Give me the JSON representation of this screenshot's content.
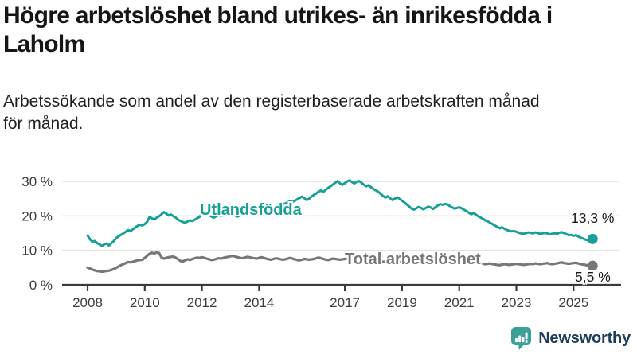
{
  "title_lines": [
    "Högre arbetslöshet bland utrikes- än inrikesfödda i",
    "Laholm"
  ],
  "subtitle_lines": [
    "Arbetssökande som andel av den registerbaserade arbetskraften månad",
    "för månad."
  ],
  "logo": {
    "name": "Newsworthy",
    "icon": "newsworthy-bars-exclamation-bubble",
    "icon_color": "#3ba197",
    "text_color": "#1e3e5c"
  },
  "colors": {
    "utlandsfodda": "#16a096",
    "total": "#76767b",
    "grid": "#e3e3e3",
    "axis": "#3a3a3a",
    "tick_text": "#3d3d3d"
  },
  "chart_data": {
    "type": "line",
    "title": "Högre arbetslöshet bland utrikes- än inrikesfödda i Laholm",
    "subtitle": "Arbetssökande som andel av den registerbaserade arbetskraften månad för månad.",
    "x_unit": "month",
    "x_start": "2008-01",
    "x_end": "2025-09",
    "grid": "horizontal",
    "legend_position": "inline-labels",
    "y_axis": {
      "min": 0,
      "max": 32,
      "ticks": [
        {
          "value": 0,
          "label": "0 %"
        },
        {
          "value": 10,
          "label": "10 %"
        },
        {
          "value": 20,
          "label": "20 %"
        },
        {
          "value": 30,
          "label": "30 %"
        }
      ]
    },
    "x_axis": {
      "tick_years": [
        2008,
        2010,
        2012,
        2014,
        2017,
        2019,
        2021,
        2023,
        2025
      ]
    },
    "series": [
      {
        "name": "Utlandsfödda",
        "color": "#16a096",
        "end_label": "13,3 %",
        "end_value": 13.3,
        "values": [
          14.3,
          13.2,
          12.5,
          12.7,
          12.1,
          11.7,
          11.3,
          11.7,
          12.0,
          11.4,
          12.1,
          12.7,
          13.5,
          14.1,
          14.5,
          14.9,
          15.4,
          15.9,
          15.6,
          16.1,
          16.6,
          17.1,
          17.4,
          17.2,
          17.6,
          18.3,
          19.7,
          19.3,
          18.9,
          19.5,
          19.9,
          20.4,
          21.1,
          20.7,
          20.1,
          20.4,
          19.9,
          19.5,
          18.9,
          18.5,
          18.2,
          18.0,
          18.4,
          18.7,
          18.5,
          18.9,
          19.3,
          19.7,
          20.7,
          21.1,
          20.7,
          20.2,
          19.8,
          19.5,
          19.9,
          20.3,
          20.0,
          20.4,
          20.7,
          20.5,
          20.9,
          20.5,
          20.1,
          19.8,
          20.2,
          20.7,
          21.1,
          21.5,
          21.2,
          20.9,
          21.3,
          21.6,
          21.8,
          21.4,
          21.2,
          21.5,
          21.9,
          22.3,
          22.6,
          22.2,
          22.5,
          22.9,
          23.3,
          23.6,
          23.9,
          24.3,
          24.0,
          24.4,
          24.8,
          25.2,
          25.6,
          25.1,
          24.6,
          25.0,
          25.6,
          26.1,
          26.5,
          27.0,
          27.4,
          27.0,
          27.6,
          28.1,
          28.6,
          29.1,
          29.6,
          30.1,
          29.4,
          29.0,
          29.5,
          30.0,
          30.3,
          29.8,
          29.4,
          29.9,
          30.1,
          29.6,
          29.0,
          28.6,
          28.9,
          28.3,
          27.8,
          27.4,
          27.0,
          26.4,
          25.8,
          25.3,
          25.7,
          25.1,
          24.6,
          25.0,
          25.4,
          24.9,
          24.4,
          23.9,
          23.3,
          22.7,
          22.1,
          21.8,
          22.2,
          22.6,
          22.3,
          21.9,
          22.3,
          22.7,
          22.4,
          22.0,
          22.5,
          23.0,
          23.4,
          23.2,
          23.5,
          23.3,
          22.9,
          22.5,
          22.1,
          22.3,
          22.5,
          22.2,
          21.8,
          21.4,
          20.9,
          20.5,
          20.8,
          20.4,
          19.9,
          19.5,
          19.1,
          18.7,
          18.4,
          18.0,
          17.6,
          17.2,
          16.8,
          16.4,
          16.7,
          16.3,
          15.9,
          15.7,
          15.5,
          15.6,
          15.4,
          15.1,
          14.9,
          14.8,
          15.0,
          15.2,
          15.1,
          14.9,
          15.2,
          15.0,
          14.8,
          14.9,
          15.1,
          14.9,
          14.7,
          14.8,
          15.0,
          14.8,
          15.1,
          15.3,
          15.0,
          14.7,
          14.4,
          14.5,
          14.2,
          14.4,
          14.0,
          13.7,
          13.4,
          13.1,
          12.9,
          13.0,
          13.3
        ]
      },
      {
        "name": "Total arbetslöshet",
        "color": "#76767b",
        "end_label": "5,5 %",
        "end_value": 5.5,
        "values": [
          5.0,
          4.7,
          4.4,
          4.2,
          4.0,
          3.9,
          3.8,
          3.9,
          4.0,
          4.1,
          4.3,
          4.6,
          4.9,
          5.3,
          5.7,
          6.0,
          6.3,
          6.6,
          6.5,
          6.7,
          6.9,
          7.1,
          7.2,
          7.3,
          7.8,
          8.4,
          9.0,
          9.3,
          9.1,
          9.4,
          9.2,
          8.0,
          7.6,
          7.8,
          8.0,
          8.1,
          8.2,
          7.9,
          7.4,
          6.9,
          6.8,
          7.1,
          7.4,
          7.2,
          7.5,
          7.7,
          7.9,
          7.8,
          8.0,
          7.8,
          7.6,
          7.4,
          7.2,
          7.3,
          7.5,
          7.7,
          7.6,
          7.8,
          8.0,
          8.1,
          8.3,
          8.4,
          8.2,
          8.0,
          7.8,
          7.7,
          7.9,
          8.1,
          8.0,
          7.8,
          7.7,
          7.6,
          7.8,
          8.0,
          7.8,
          7.6,
          7.4,
          7.3,
          7.5,
          7.7,
          7.6,
          7.4,
          7.3,
          7.4,
          7.6,
          7.8,
          7.6,
          7.4,
          7.2,
          7.1,
          7.3,
          7.5,
          7.4,
          7.3,
          7.4,
          7.5,
          7.7,
          7.9,
          7.7,
          7.5,
          7.3,
          7.2,
          7.4,
          7.6,
          7.5,
          7.4,
          7.3,
          7.4,
          7.5,
          7.6,
          7.4,
          7.2,
          7.1,
          7.0,
          7.2,
          7.4,
          7.3,
          7.2,
          7.1,
          7.0,
          7.1,
          7.2,
          7.0,
          6.8,
          6.7,
          6.6,
          6.8,
          7.0,
          6.9,
          6.8,
          6.7,
          6.6,
          6.7,
          6.8,
          6.6,
          6.5,
          6.4,
          6.3,
          6.5,
          6.7,
          6.6,
          6.5,
          6.6,
          6.7,
          6.8,
          6.9,
          7.2,
          7.5,
          7.7,
          7.6,
          7.7,
          7.6,
          7.4,
          7.2,
          7.0,
          7.1,
          7.2,
          7.1,
          6.9,
          6.7,
          6.5,
          6.4,
          6.6,
          6.5,
          6.3,
          6.2,
          6.1,
          6.0,
          6.1,
          6.2,
          6.0,
          5.9,
          5.8,
          5.7,
          5.9,
          6.0,
          5.9,
          5.8,
          5.9,
          6.0,
          6.1,
          6.0,
          5.9,
          5.8,
          5.9,
          6.0,
          6.1,
          6.0,
          6.2,
          6.1,
          6.0,
          6.1,
          6.2,
          6.3,
          6.1,
          6.0,
          6.1,
          6.2,
          6.4,
          6.5,
          6.3,
          6.2,
          6.1,
          6.2,
          6.3,
          6.4,
          6.2,
          6.0,
          5.9,
          5.8,
          5.6,
          5.4,
          5.5
        ]
      }
    ]
  }
}
